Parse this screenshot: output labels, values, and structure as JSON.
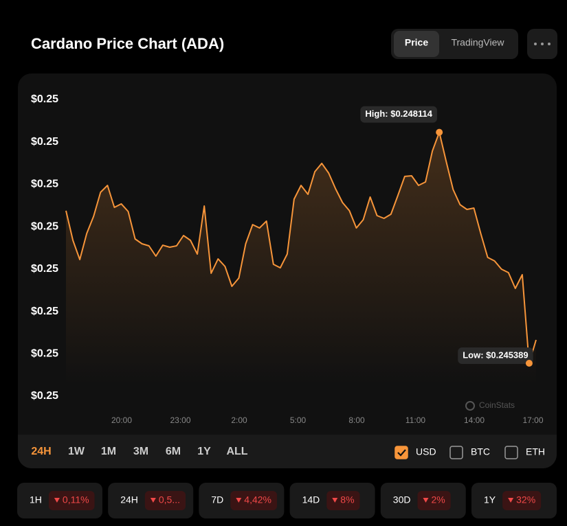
{
  "header": {
    "title": "Cardano Price Chart (ADA)",
    "tabs": [
      "Price",
      "TradingView"
    ]
  },
  "chart_data": {
    "type": "line",
    "color": "#f7953a",
    "values": [
      0.247188,
      0.246839,
      0.246612,
      0.24692,
      0.247123,
      0.247406,
      0.247487,
      0.247228,
      0.247269,
      0.247179,
      0.246855,
      0.246799,
      0.246774,
      0.246653,
      0.246782,
      0.246758,
      0.246774,
      0.246896,
      0.246839,
      0.246677,
      0.247244,
      0.24645,
      0.24662,
      0.246531,
      0.246296,
      0.246394,
      0.246799,
      0.247025,
      0.246985,
      0.247066,
      0.246556,
      0.246515,
      0.246677,
      0.247325,
      0.247487,
      0.247382,
      0.247649,
      0.247747,
      0.247633,
      0.247447,
      0.247285,
      0.247188,
      0.246985,
      0.247082,
      0.24735,
      0.247131,
      0.247098,
      0.247147,
      0.247366,
      0.247593,
      0.247601,
      0.247487,
      0.247528,
      0.247892,
      0.248114,
      0.247771,
      0.247439,
      0.24726,
      0.247204,
      0.24722,
      0.24692,
      0.246637,
      0.246596,
      0.246499,
      0.246458,
      0.246272,
      0.246434,
      0.245389,
      0.245664
    ],
    "ylim": [
      0.245,
      0.2485
    ],
    "yticks": [
      {
        "value": 0.2485,
        "label": "$0.25"
      },
      {
        "value": 0.248,
        "label": "$0.25"
      },
      {
        "value": 0.2475,
        "label": "$0.25"
      },
      {
        "value": 0.247,
        "label": "$0.25"
      },
      {
        "value": 0.2465,
        "label": "$0.25"
      },
      {
        "value": 0.246,
        "label": "$0.25"
      },
      {
        "value": 0.2455,
        "label": "$0.25"
      },
      {
        "value": 0.245,
        "label": "$0.25"
      }
    ],
    "xtick_labels": [
      "20:00",
      "23:00",
      "2:00",
      "5:00",
      "8:00",
      "11:00",
      "14:00",
      "17:00"
    ],
    "high_label": "High: $0.248114",
    "low_label": "Low: $0.245389",
    "watermark": "CoinStats"
  },
  "ranges": [
    "24H",
    "1W",
    "1M",
    "3M",
    "6M",
    "1Y",
    "ALL"
  ],
  "currencies": [
    {
      "name": "USD",
      "checked": true
    },
    {
      "name": "BTC",
      "checked": false
    },
    {
      "name": "ETH",
      "checked": false
    }
  ],
  "changes": [
    {
      "period": "1H",
      "change": "0,11%"
    },
    {
      "period": "24H",
      "change": "0,5..."
    },
    {
      "period": "7D",
      "change": "4,42%"
    },
    {
      "period": "14D",
      "change": "8%"
    },
    {
      "period": "30D",
      "change": "2%"
    },
    {
      "period": "1Y",
      "change": "32%"
    }
  ]
}
